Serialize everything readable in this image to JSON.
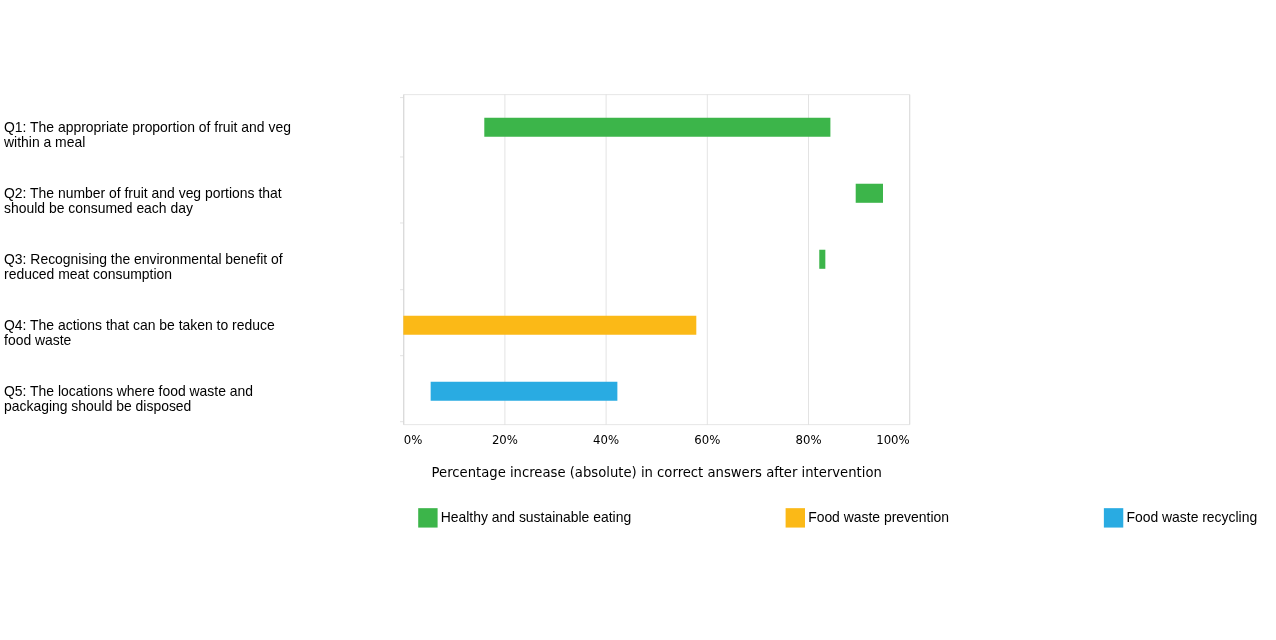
{
  "chart_data": {
    "type": "bar",
    "orientation": "horizontal",
    "xlabel": "Percentage increase (absolute) in correct answers after intervention",
    "categories": [
      "Q1: The appropriate proportion of fruit and veg within a meal",
      "Q2: The number of fruit and veg portions that should be consumed each day",
      "Q3: Recognising the environmental benefit of reduced meat consumption",
      "Q4: The actions that can be taken to reduce food waste",
      "Q5: The locations where food waste and packaging should be disposed"
    ],
    "series": [
      {
        "name": "Healthy and sustainable eating",
        "color": "#3cb54a",
        "base": [
          16,
          89.4,
          82.2,
          null,
          null
        ],
        "values": [
          68.4,
          5.4,
          1.2,
          null,
          null
        ]
      },
      {
        "name": "Food waste prevention",
        "color": "#fbb917",
        "base": [
          null,
          null,
          null,
          0,
          null
        ],
        "values": [
          null,
          null,
          null,
          57.9,
          null
        ]
      },
      {
        "name": "Food waste recycling",
        "color": "#29abe2",
        "base": [
          null,
          null,
          null,
          null,
          5.4
        ],
        "values": [
          null,
          null,
          null,
          null,
          36.9
        ]
      }
    ],
    "xlim": [
      0,
      100
    ],
    "xticks": [
      {
        "value": 0,
        "label": "0%"
      },
      {
        "value": 20,
        "label": "20%"
      },
      {
        "value": 40,
        "label": "40%"
      },
      {
        "value": 60,
        "label": "60%"
      },
      {
        "value": 80,
        "label": "80%"
      },
      {
        "value": 100,
        "label": "100%"
      }
    ],
    "grid": "x",
    "legend": "bottom"
  }
}
